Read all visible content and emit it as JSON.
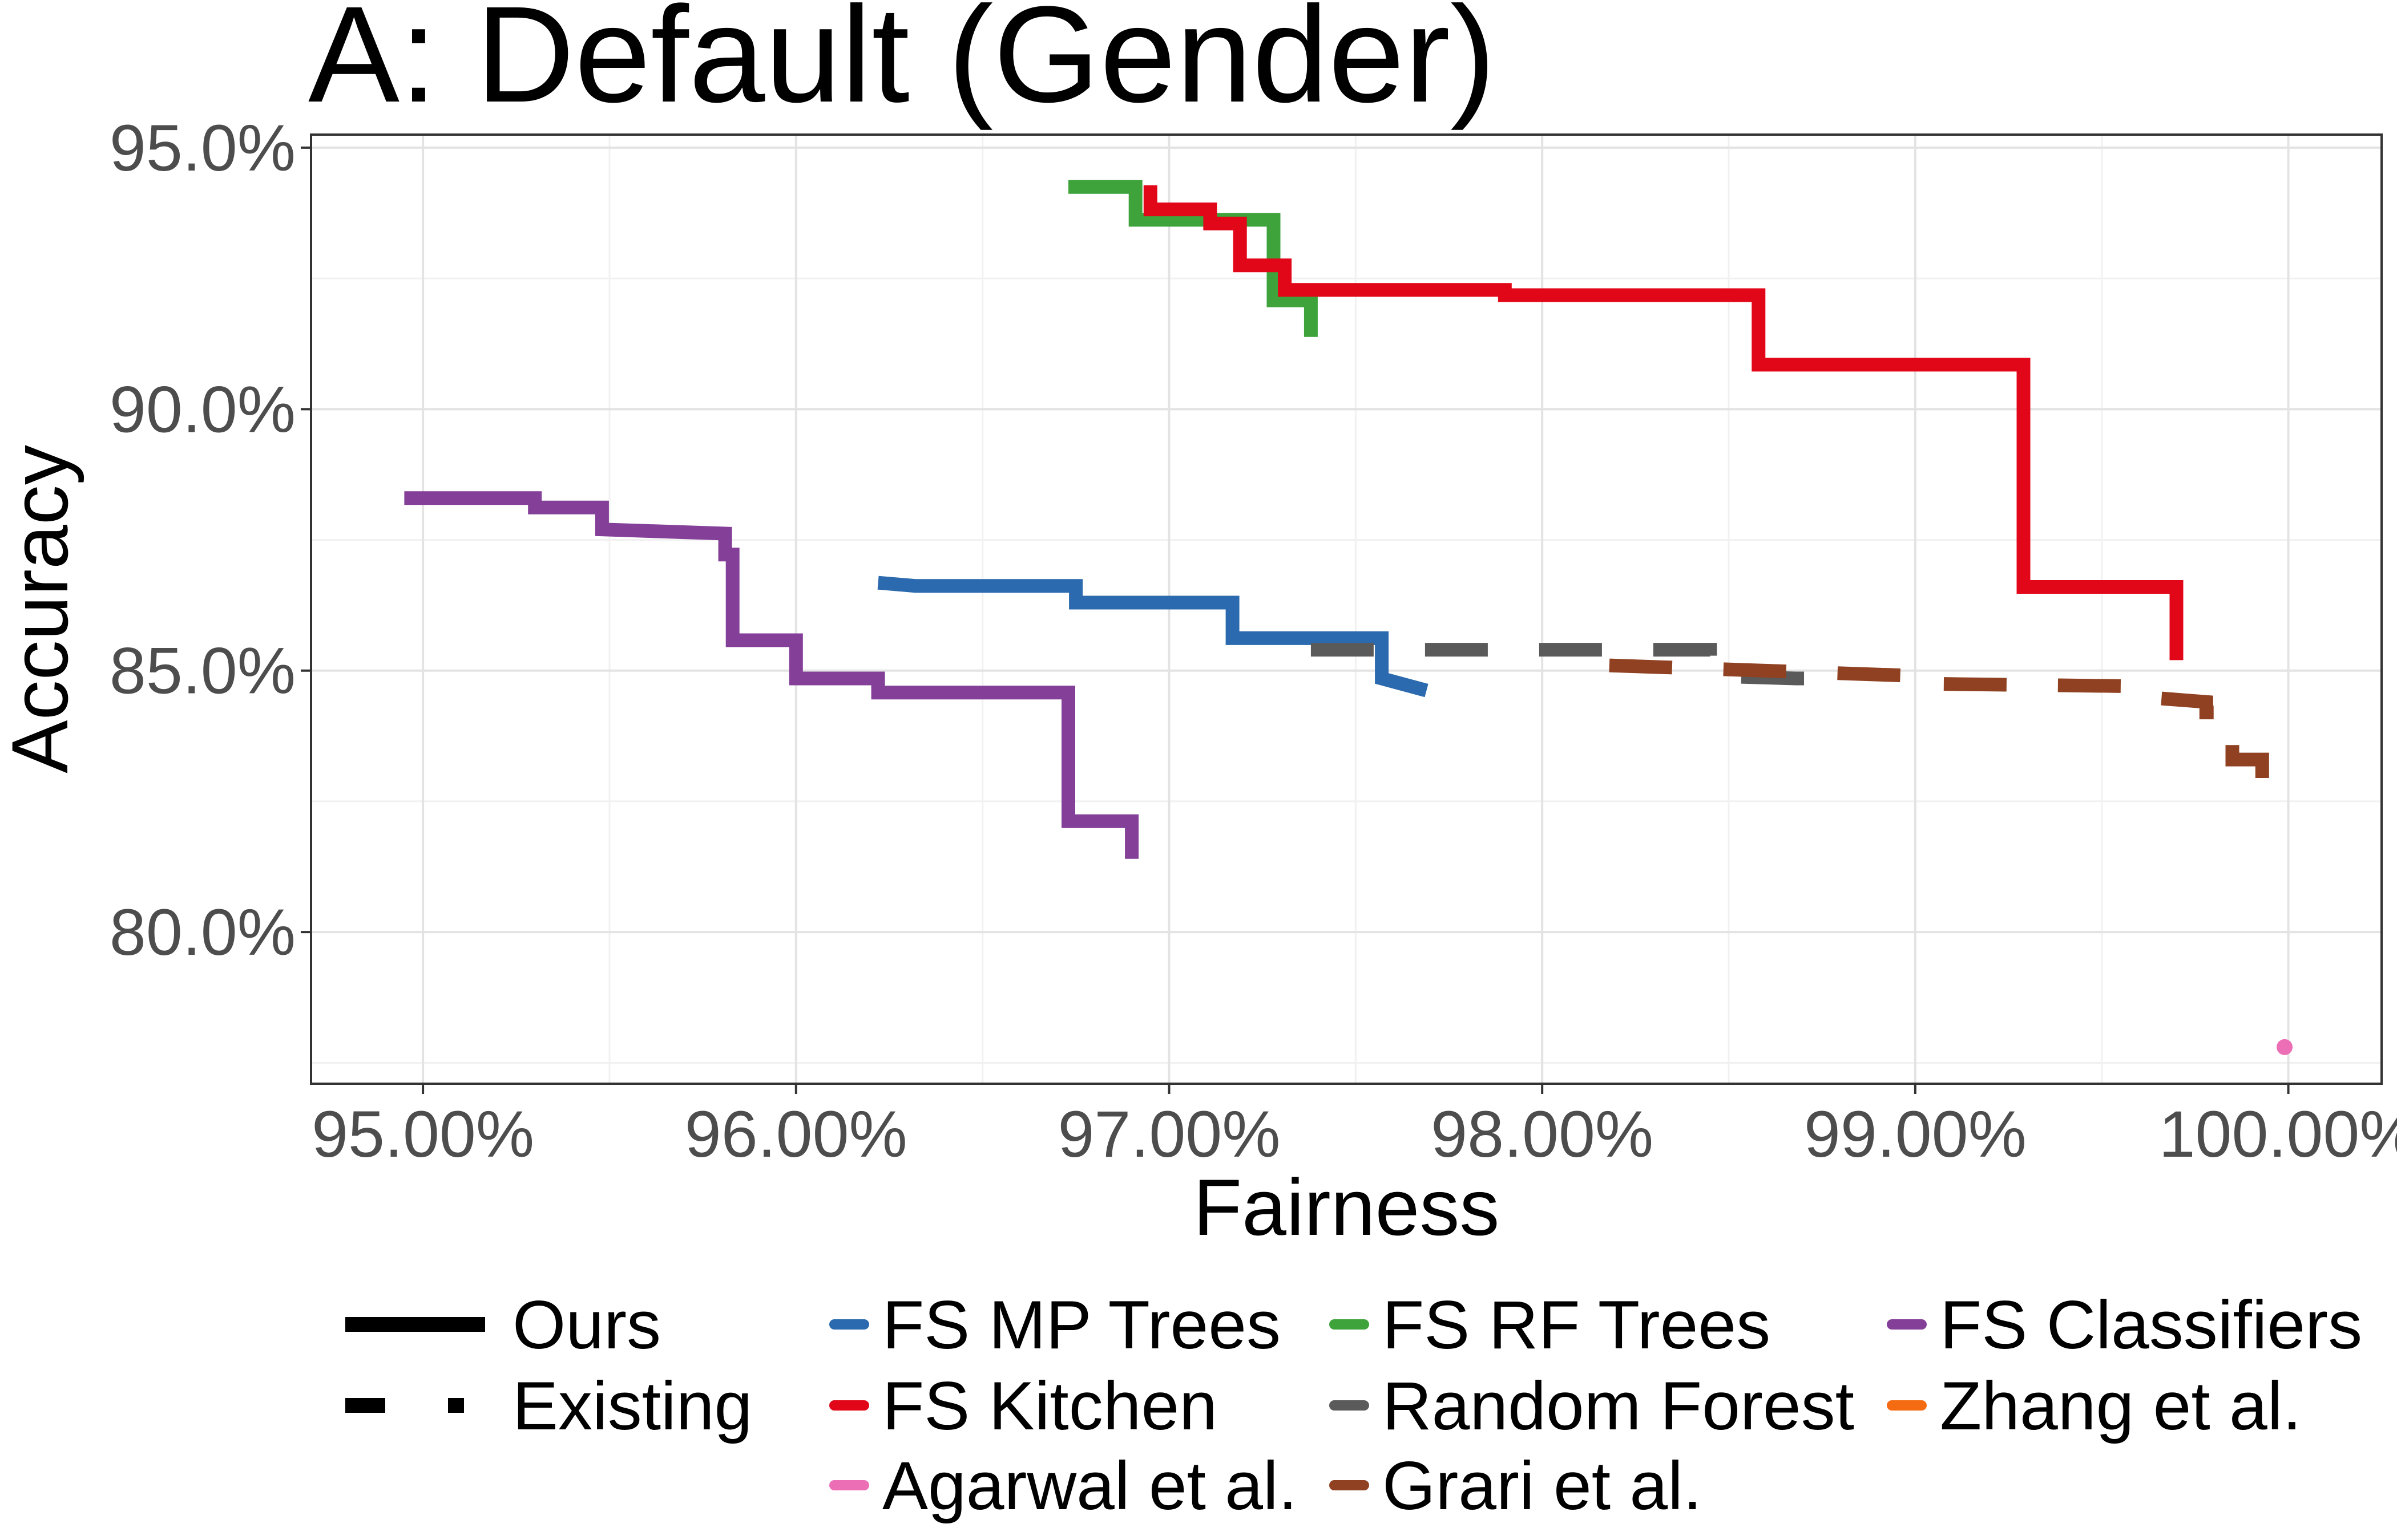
{
  "chart_data": {
    "type": "line",
    "title": "A: Default (Gender)",
    "xlabel": "Fairness",
    "ylabel": "Accuracy",
    "xlim": [
      0.947,
      1.0025
    ],
    "ylim": [
      0.771,
      0.9525
    ],
    "x_ticks": [
      0.95,
      0.96,
      0.97,
      0.98,
      0.99,
      1.0
    ],
    "x_tick_labels": [
      "95.00%",
      "96.00%",
      "97.00%",
      "98.00%",
      "99.00%",
      "100.00%"
    ],
    "y_ticks": [
      0.8,
      0.85,
      0.9,
      0.95
    ],
    "y_tick_labels": [
      "80.0%",
      "85.0%",
      "90.0%",
      "95.0%"
    ],
    "grid": true,
    "legend_position": "bottom",
    "line_types": [
      {
        "name": "Ours",
        "style": "solid"
      },
      {
        "name": "Existing",
        "style": "dashed"
      }
    ],
    "series": [
      {
        "name": "FS MP Trees",
        "group": "Ours",
        "color": "#2B6AAE",
        "x": [
          0.9622,
          0.9632,
          0.9675,
          0.9675,
          0.9717,
          0.9717,
          0.9757,
          0.9757,
          0.9769
        ],
        "y": [
          0.8668,
          0.8662,
          0.8662,
          0.863,
          0.863,
          0.8562,
          0.8562,
          0.8485,
          0.8462
        ]
      },
      {
        "name": "FS Kitchen",
        "group": "Ours",
        "color": "#E10718",
        "x": [
          0.9695,
          0.9695,
          0.9711,
          0.9711,
          0.9719,
          0.9719,
          0.9731,
          0.9731,
          0.979,
          0.979,
          0.9858,
          0.9858,
          0.9929,
          0.9929,
          0.997,
          0.997
        ],
        "y": [
          0.9428,
          0.9382,
          0.9382,
          0.9355,
          0.9355,
          0.9275,
          0.9275,
          0.9228,
          0.9228,
          0.9218,
          0.9218,
          0.9085,
          0.9085,
          0.866,
          0.866,
          0.852
        ]
      },
      {
        "name": "FS RF Trees",
        "group": "Ours",
        "color": "#3DA33A",
        "x": [
          0.9673,
          0.9691,
          0.9691,
          0.9728,
          0.9728,
          0.9738,
          0.9738
        ],
        "y": [
          0.9425,
          0.9425,
          0.9362,
          0.9362,
          0.9208,
          0.9208,
          0.9138
        ]
      },
      {
        "name": "Random Forest",
        "group": "Existing",
        "color": "#5A5A5A",
        "x": [
          0.9738,
          0.9845,
          0.9845,
          0.9868,
          0.9874
        ],
        "y": [
          0.854,
          0.854,
          0.849,
          0.8485,
          0.8485
        ]
      },
      {
        "name": "FS Classifiers",
        "group": "Ours",
        "color": "#843F98",
        "x": [
          0.9495,
          0.953,
          0.953,
          0.9548,
          0.9548,
          0.9581,
          0.9581,
          0.9583,
          0.9583,
          0.96,
          0.96,
          0.9622,
          0.9622,
          0.9673,
          0.9673,
          0.969,
          0.969
        ],
        "y": [
          0.883,
          0.883,
          0.8812,
          0.8812,
          0.877,
          0.8762,
          0.8722,
          0.8722,
          0.8558,
          0.8558,
          0.8485,
          0.8485,
          0.8458,
          0.8458,
          0.8212,
          0.8212,
          0.814
        ]
      },
      {
        "name": "Zhang et al.",
        "group": "Existing",
        "color": "#F46B12",
        "x": [],
        "y": []
      },
      {
        "name": "Agarwal et al.",
        "group": "Existing",
        "color": "#EC6FB6",
        "x": [
          0.9999
        ],
        "y": [
          0.778
        ]
      },
      {
        "name": "Grari et al.",
        "group": "Existing",
        "color": "#8F4121",
        "x": [
          0.9818,
          0.99,
          0.99,
          0.996,
          0.996,
          0.9978,
          0.9978,
          0.9985,
          0.9985,
          0.9993,
          0.9993
        ],
        "y": [
          0.851,
          0.849,
          0.8475,
          0.847,
          0.845,
          0.844,
          0.842,
          0.842,
          0.833,
          0.833,
          0.822
        ]
      }
    ],
    "legend": {
      "linetype_entries": [
        "Ours",
        "Existing"
      ],
      "color_entries": [
        "FS MP Trees",
        "FS Kitchen",
        "Agarwal et al.",
        "FS RF Trees",
        "Random Forest",
        "Grari et al.",
        "FS Classifiers",
        "Zhang et al."
      ]
    }
  }
}
